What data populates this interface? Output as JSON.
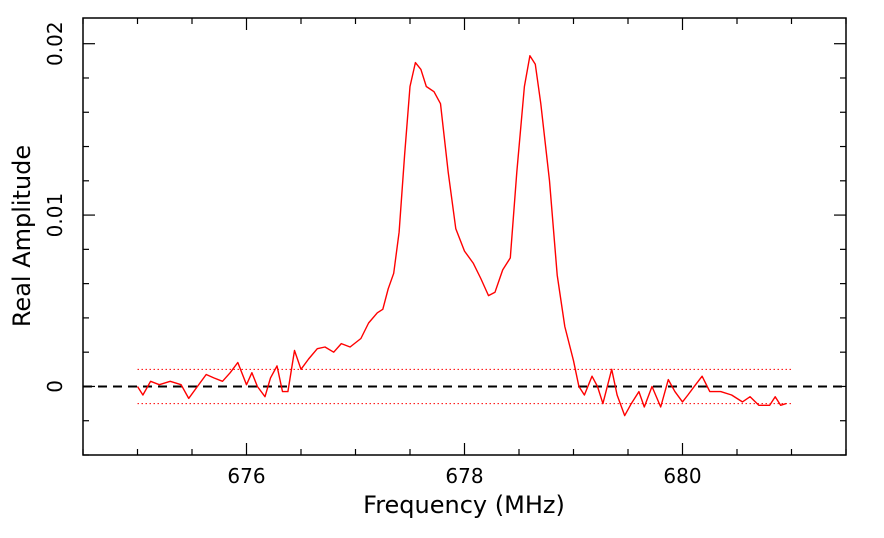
{
  "chart_data": {
    "type": "line",
    "title": "",
    "xlabel": "Frequency (MHz)",
    "ylabel": "Real Amplitude",
    "xlim": [
      674.5,
      681.5
    ],
    "ylim": [
      -0.004,
      0.0215
    ],
    "x_ticks": [
      676,
      678,
      680
    ],
    "x_tick_labels": [
      "676",
      "678",
      "680"
    ],
    "y_ticks": [
      0,
      0.01,
      0.02
    ],
    "y_tick_labels": [
      "0",
      "0.01",
      "0.02"
    ],
    "x_minor_step": 0.5,
    "y_minor_step": 0.002,
    "grid": false,
    "legend": "none",
    "colors": {
      "spectrum": "#ff0000",
      "baseline": "#000000",
      "noise_band": "#ff0000"
    },
    "reference_lines": [
      {
        "kind": "baseline",
        "y": 0,
        "style": "dashed",
        "color": "#000000"
      },
      {
        "kind": "noise_band_upper",
        "y": 0.001,
        "x_range": [
          675,
          681
        ],
        "style": "dotted",
        "color": "#ff0000"
      },
      {
        "kind": "noise_band_lower",
        "y": -0.001,
        "x_range": [
          675,
          681
        ],
        "style": "dotted",
        "color": "#ff0000"
      }
    ],
    "series": [
      {
        "color": "#ff0000",
        "points": [
          [
            675.0,
            0.0
          ],
          [
            675.05,
            -0.0005
          ],
          [
            675.12,
            0.0003
          ],
          [
            675.2,
            0.0001
          ],
          [
            675.3,
            0.0003
          ],
          [
            675.4,
            0.0001
          ],
          [
            675.47,
            -0.0007
          ],
          [
            675.55,
            0.0
          ],
          [
            675.63,
            0.0007
          ],
          [
            675.7,
            0.0005
          ],
          [
            675.78,
            0.0003
          ],
          [
            675.85,
            0.0008
          ],
          [
            675.92,
            0.0014
          ],
          [
            676.0,
            0.0001
          ],
          [
            676.05,
            0.0008
          ],
          [
            676.1,
            0.0
          ],
          [
            676.17,
            -0.0006
          ],
          [
            676.22,
            0.0005
          ],
          [
            676.28,
            0.0012
          ],
          [
            676.33,
            -0.0003
          ],
          [
            676.38,
            -0.0003
          ],
          [
            676.44,
            0.0021
          ],
          [
            676.5,
            0.001
          ],
          [
            676.57,
            0.0016
          ],
          [
            676.65,
            0.0022
          ],
          [
            676.72,
            0.0023
          ],
          [
            676.8,
            0.002
          ],
          [
            676.87,
            0.0025
          ],
          [
            676.95,
            0.0023
          ],
          [
            677.05,
            0.0028
          ],
          [
            677.12,
            0.0037
          ],
          [
            677.2,
            0.0043
          ],
          [
            677.25,
            0.0045
          ],
          [
            677.3,
            0.0057
          ],
          [
            677.35,
            0.0066
          ],
          [
            677.4,
            0.009
          ],
          [
            677.45,
            0.0135
          ],
          [
            677.5,
            0.0175
          ],
          [
            677.55,
            0.0189
          ],
          [
            677.6,
            0.0185
          ],
          [
            677.65,
            0.0175
          ],
          [
            677.72,
            0.0172
          ],
          [
            677.78,
            0.0165
          ],
          [
            677.85,
            0.0125
          ],
          [
            677.92,
            0.0092
          ],
          [
            678.0,
            0.0079
          ],
          [
            678.08,
            0.0072
          ],
          [
            678.15,
            0.0063
          ],
          [
            678.22,
            0.0053
          ],
          [
            678.28,
            0.0055
          ],
          [
            678.35,
            0.0068
          ],
          [
            678.42,
            0.0075
          ],
          [
            678.48,
            0.0125
          ],
          [
            678.55,
            0.0175
          ],
          [
            678.6,
            0.0193
          ],
          [
            678.65,
            0.0188
          ],
          [
            678.7,
            0.0165
          ],
          [
            678.78,
            0.012
          ],
          [
            678.85,
            0.0065
          ],
          [
            678.92,
            0.0035
          ],
          [
            679.0,
            0.0015
          ],
          [
            679.05,
            0.0
          ],
          [
            679.1,
            -0.0005
          ],
          [
            679.17,
            0.0006
          ],
          [
            679.22,
            0.0
          ],
          [
            679.27,
            -0.001
          ],
          [
            679.35,
            0.001
          ],
          [
            679.4,
            -0.0005
          ],
          [
            679.47,
            -0.0017
          ],
          [
            679.53,
            -0.001
          ],
          [
            679.6,
            -0.0003
          ],
          [
            679.65,
            -0.0012
          ],
          [
            679.72,
            0.0
          ],
          [
            679.8,
            -0.0012
          ],
          [
            679.87,
            0.0004
          ],
          [
            679.93,
            -0.0003
          ],
          [
            680.0,
            -0.0009
          ],
          [
            680.05,
            -0.0005
          ],
          [
            680.12,
            0.0001
          ],
          [
            680.18,
            0.0006
          ],
          [
            680.25,
            -0.0003
          ],
          [
            680.35,
            -0.0003
          ],
          [
            680.45,
            -0.0005
          ],
          [
            680.55,
            -0.0009
          ],
          [
            680.62,
            -0.0006
          ],
          [
            680.7,
            -0.0011
          ],
          [
            680.8,
            -0.0011
          ],
          [
            680.85,
            -0.0006
          ],
          [
            680.9,
            -0.0011
          ],
          [
            680.95,
            -0.001
          ]
        ]
      }
    ]
  }
}
